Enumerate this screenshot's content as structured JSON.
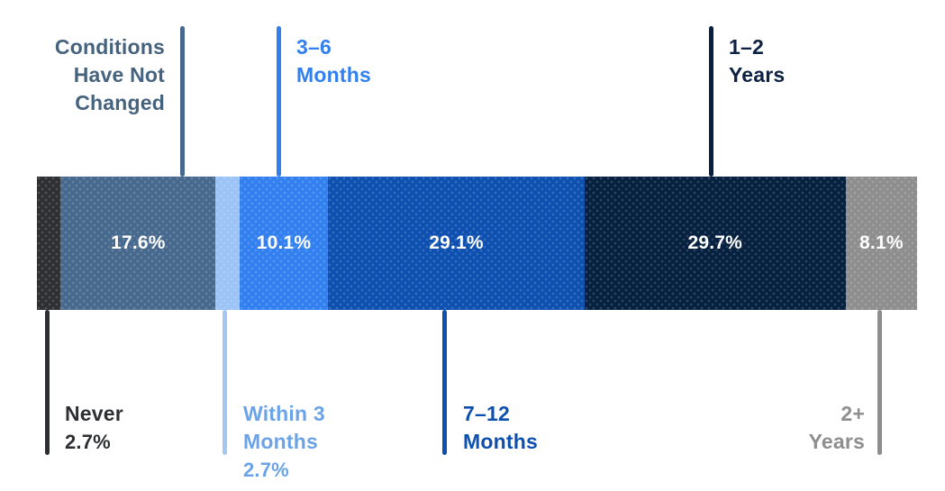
{
  "chart_data": {
    "type": "bar",
    "variant": "horizontal-stacked-single-bar",
    "title": "",
    "unit": "%",
    "total": 100,
    "bar_label_color": "#ffffff",
    "segments": [
      {
        "label": "Never",
        "value": 2.7,
        "callout_value": "2.7%",
        "bar_label": "",
        "color": "#2e2f33",
        "line_color": "#2e2f33",
        "text_color": "#2e2f33",
        "callout": "below"
      },
      {
        "label": "Conditions Have Not Changed",
        "value": 17.6,
        "callout_value": "",
        "bar_label": "17.6%",
        "color": "#47698d",
        "line_color": "#47698d",
        "text_color": "#45627f",
        "callout": "above"
      },
      {
        "label": "Within 3 Months",
        "value": 2.7,
        "callout_value": "2.7%",
        "bar_label": "",
        "color": "#9cc3f6",
        "line_color": "#a5c8f3",
        "text_color": "#6ba3e8",
        "callout": "below"
      },
      {
        "label": "3–6 Months",
        "value": 10.1,
        "callout_value": "",
        "bar_label": "10.1%",
        "color": "#3280f0",
        "line_color": "#3280f0",
        "text_color": "#3280f0",
        "callout": "above"
      },
      {
        "label": "7–12 Months",
        "value": 29.1,
        "callout_value": "",
        "bar_label": "29.1%",
        "color": "#0d50b0",
        "line_color": "#0d50b0",
        "text_color": "#0d50b0",
        "callout": "below"
      },
      {
        "label": "1–2 Years",
        "value": 29.7,
        "callout_value": "",
        "bar_label": "29.7%",
        "color": "#06203f",
        "line_color": "#06203f",
        "text_color": "#0d2142",
        "callout": "above"
      },
      {
        "label": "2+ Years",
        "value": 8.1,
        "callout_value": "",
        "bar_label": "8.1%",
        "color": "#8e8e8e",
        "line_color": "#8e8e8e",
        "text_color": "#8e8e8e",
        "callout": "below"
      }
    ]
  }
}
